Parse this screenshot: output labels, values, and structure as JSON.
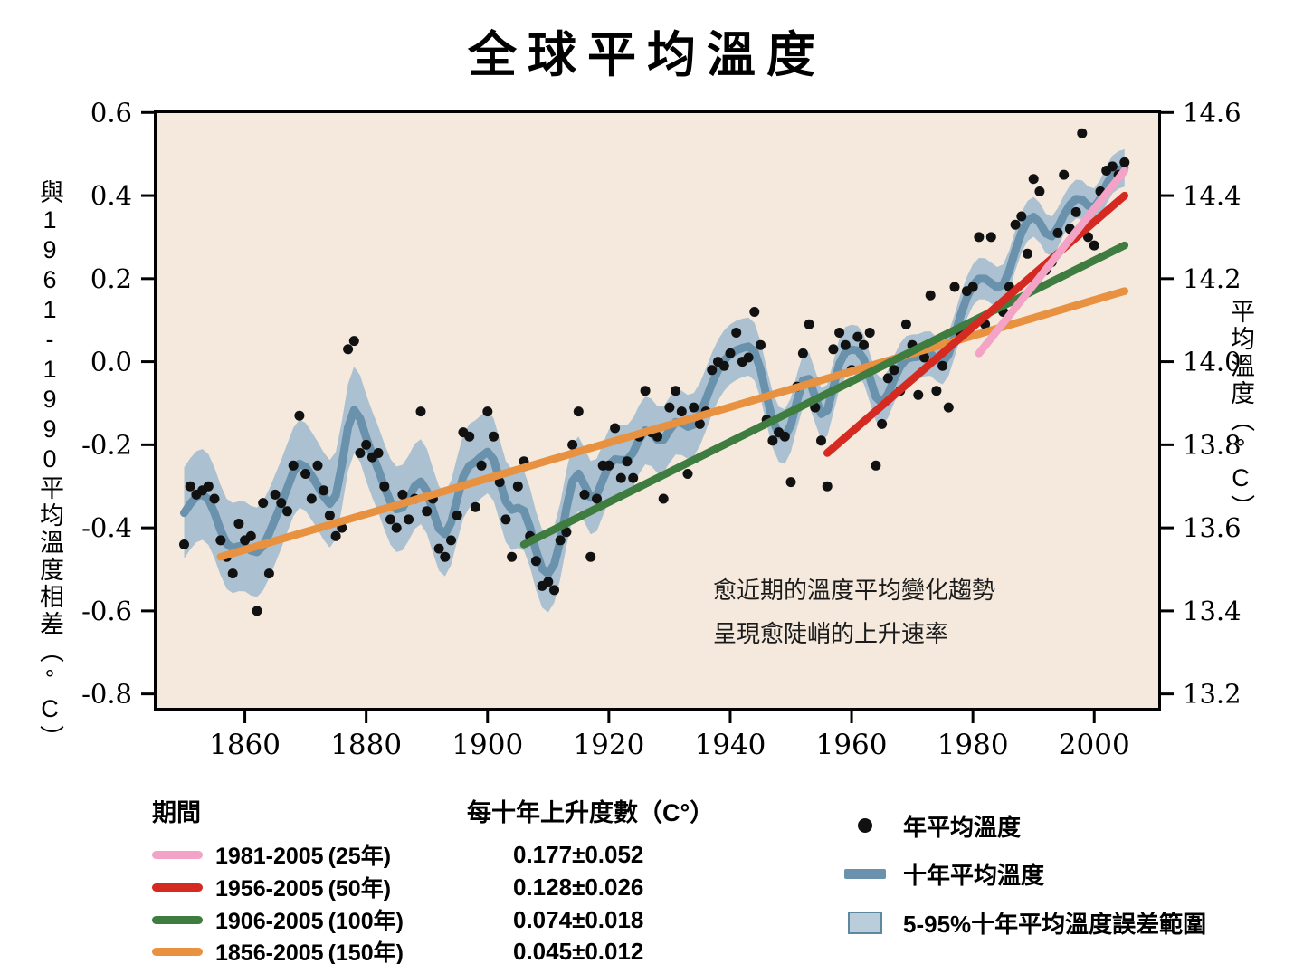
{
  "title": "全球平均溫度",
  "left_axis_label": "與1961-1990平均溫度相差（°C）",
  "right_axis_label": "平均溫度（°C）",
  "annotation": {
    "line1": "愈近期的溫度平均變化趨勢",
    "line2": "呈現愈陡峭的上升速率"
  },
  "chart_data": {
    "type": "scatter",
    "title": "全球平均溫度",
    "xlabel": "",
    "ylabel_left": "與1961-1990平均溫度相差（°C）",
    "ylabel_right": "平均溫度（°C）",
    "x_range": [
      1845,
      2011
    ],
    "y_domain": [
      -0.84,
      0.605
    ],
    "ylim_left": [
      -0.8,
      0.6
    ],
    "ylim_right": [
      13.2,
      14.6
    ],
    "right_axis_offset": 14.0,
    "x_ticks": [
      "1860",
      "1880",
      "1900",
      "1920",
      "1940",
      "1960",
      "1980",
      "2000"
    ],
    "y_ticks_left": [
      "0.6",
      "0.4",
      "0.2",
      "0.0",
      "-0.2",
      "-0.4",
      "-0.6",
      "-0.8"
    ],
    "y_ticks_right": [
      "14.6",
      "14.4",
      "14.2",
      "14.0",
      "13.8",
      "13.6",
      "13.4",
      "13.2"
    ],
    "annual": {
      "label": "年平均溫度",
      "start_year": 1850,
      "values": [
        -0.44,
        -0.3,
        -0.32,
        -0.31,
        -0.3,
        -0.33,
        -0.43,
        -0.47,
        -0.51,
        -0.39,
        -0.43,
        -0.42,
        -0.6,
        -0.34,
        -0.51,
        -0.32,
        -0.34,
        -0.36,
        -0.25,
        -0.13,
        -0.27,
        -0.33,
        -0.25,
        -0.31,
        -0.37,
        -0.42,
        -0.4,
        0.03,
        0.05,
        -0.22,
        -0.2,
        -0.23,
        -0.22,
        -0.3,
        -0.38,
        -0.4,
        -0.32,
        -0.38,
        -0.33,
        -0.12,
        -0.36,
        -0.33,
        -0.45,
        -0.47,
        -0.43,
        -0.37,
        -0.17,
        -0.18,
        -0.35,
        -0.25,
        -0.12,
        -0.18,
        -0.29,
        -0.38,
        -0.47,
        -0.3,
        -0.24,
        -0.42,
        -0.48,
        -0.54,
        -0.53,
        -0.55,
        -0.43,
        -0.41,
        -0.2,
        -0.12,
        -0.32,
        -0.47,
        -0.33,
        -0.25,
        -0.25,
        -0.16,
        -0.28,
        -0.24,
        -0.28,
        -0.18,
        -0.07,
        -0.17,
        -0.18,
        -0.33,
        -0.11,
        -0.07,
        -0.12,
        -0.27,
        -0.11,
        -0.15,
        -0.12,
        -0.02,
        0.0,
        -0.01,
        0.02,
        0.07,
        0.0,
        0.01,
        0.12,
        0.04,
        -0.14,
        -0.19,
        -0.17,
        -0.18,
        -0.29,
        -0.06,
        0.02,
        0.09,
        -0.11,
        -0.19,
        -0.3,
        0.03,
        0.07,
        0.04,
        -0.02,
        0.06,
        0.04,
        0.07,
        -0.25,
        -0.15,
        -0.04,
        -0.02,
        -0.07,
        0.09,
        0.04,
        -0.08,
        0.01,
        0.16,
        -0.07,
        -0.01,
        -0.11,
        0.18,
        0.07,
        0.17,
        0.18,
        0.3,
        0.09,
        0.3,
        0.13,
        0.12,
        0.18,
        0.33,
        0.35,
        0.26,
        0.44,
        0.41,
        0.22,
        0.24,
        0.31,
        0.45,
        0.32,
        0.36,
        0.55,
        0.3,
        0.28,
        0.41,
        0.46,
        0.47,
        0.45,
        0.48
      ]
    },
    "smoothing": {
      "type": "binomial",
      "window": 9
    },
    "band_halfwidth_knots": [
      [
        1850,
        0.11
      ],
      [
        1900,
        0.1
      ],
      [
        1950,
        0.065
      ],
      [
        1980,
        0.05
      ],
      [
        2005,
        0.045
      ]
    ],
    "trends": [
      {
        "period": "1856-2005",
        "color": "#e89140",
        "x0": 1856,
        "y0": -0.47,
        "x1": 2005,
        "y1": 0.17
      },
      {
        "period": "1906-2005",
        "color": "#3e7c40",
        "x0": 1906,
        "y0": -0.44,
        "x1": 2005,
        "y1": 0.28
      },
      {
        "period": "1956-2005",
        "color": "#d42a22",
        "x0": 1956,
        "y0": -0.22,
        "x1": 2005,
        "y1": 0.4
      },
      {
        "period": "1981-2005",
        "color": "#f2a3c6",
        "x0": 1981,
        "y0": 0.02,
        "x1": 2005,
        "y1": 0.46
      }
    ],
    "colors": {
      "plot_bg": "#f4e9dc",
      "band_fill": "#abc1d1",
      "decadal_line": "#6a92ac",
      "dot": "#111111",
      "frame": "#000000"
    }
  },
  "legend": {
    "period_header": "期間",
    "rate_header": "每十年上升度數（C°）",
    "rows": [
      {
        "period": "1981-2005",
        "years": "(25年)",
        "rate": "0.177±0.052",
        "color": "#f2a3c6"
      },
      {
        "period": "1956-2005",
        "years": "(50年)",
        "rate": "0.128±0.026",
        "color": "#d42a22"
      },
      {
        "period": "1906-2005",
        "years": "(100年)",
        "rate": "0.074±0.018",
        "color": "#3e7c40"
      },
      {
        "period": "1856-2005",
        "years": "(150年)",
        "rate": "0.045±0.012",
        "color": "#e89140"
      }
    ],
    "symbols": [
      {
        "type": "dot",
        "label": "年平均溫度",
        "color": "#111111"
      },
      {
        "type": "line",
        "label": "十年平均溫度",
        "color": "#6a92ac"
      },
      {
        "type": "box",
        "label": "5-95%十年平均溫度誤差範圍",
        "fill": "#b9cdda",
        "border": "#5e87a0"
      }
    ]
  }
}
